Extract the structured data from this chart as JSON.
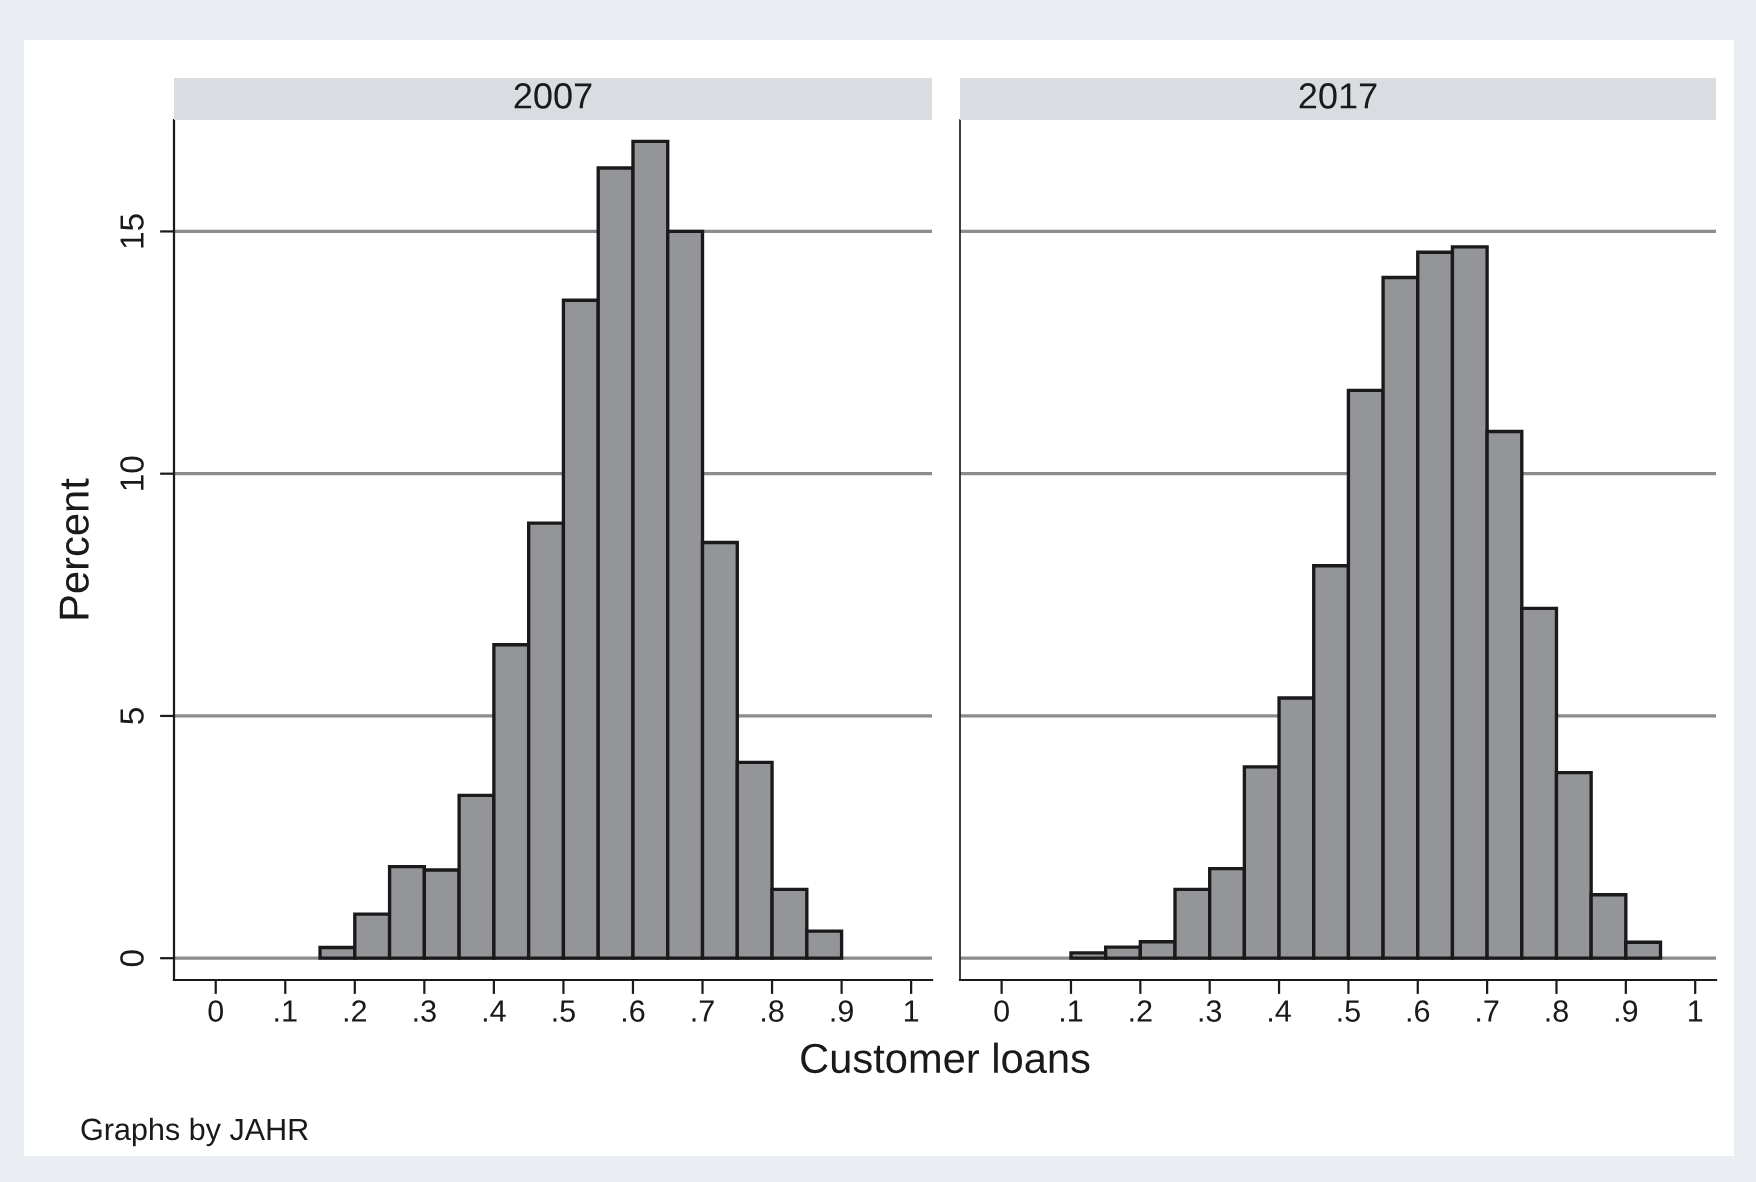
{
  "chart_data": [
    {
      "type": "histogram",
      "title": "2007",
      "xlabel": "Customer loans",
      "ylabel": "Percent",
      "annotations": [
        "Graphs by JAHR"
      ],
      "bins": [
        0.15,
        0.2,
        0.25,
        0.3,
        0.35,
        0.4,
        0.45,
        0.5,
        0.55,
        0.6,
        0.65,
        0.7,
        0.75,
        0.8,
        0.85,
        0.9
      ],
      "values": [
        0.22,
        0.91,
        1.89,
        1.82,
        3.36,
        6.47,
        8.98,
        13.58,
        16.31,
        16.86,
        15.0,
        8.58,
        4.04,
        1.42,
        0.56
      ],
      "color": "#939598",
      "xlim": [
        -0.06,
        1.03
      ],
      "ylim": [
        -0.45,
        17.3
      ],
      "xticks": [
        0,
        {
          "value": 0.1,
          "label": ".1"
        },
        {
          "value": 0.2,
          "label": ".2"
        },
        {
          "value": 0.3,
          "label": ".3"
        },
        {
          "value": 0.4,
          "label": ".4"
        },
        {
          "value": 0.5,
          "label": ".5"
        },
        {
          "value": 0.6,
          "label": ".6"
        },
        {
          "value": 0.7,
          "label": ".7"
        },
        {
          "value": 0.8,
          "label": ".8"
        },
        {
          "value": 0.9,
          "label": ".9"
        },
        1
      ],
      "yticks": [
        0,
        5,
        10,
        15
      ],
      "grid": "y"
    },
    {
      "type": "histogram",
      "title": "2017",
      "bins": [
        0.1,
        0.15,
        0.2,
        0.25,
        0.3,
        0.35,
        0.4,
        0.45,
        0.5,
        0.55,
        0.6,
        0.65,
        0.7,
        0.75,
        0.8,
        0.85,
        0.9,
        0.95
      ],
      "values": [
        0.11,
        0.23,
        0.34,
        1.42,
        1.85,
        3.95,
        5.37,
        8.1,
        11.72,
        14.05,
        14.57,
        14.68,
        10.87,
        7.22,
        3.83,
        1.31,
        0.33
      ],
      "color": "#939598",
      "xlim": [
        -0.06,
        1.03
      ],
      "ylim": [
        -0.45,
        17.3
      ],
      "xticks": [
        0,
        {
          "value": 0.1,
          "label": ".1"
        },
        {
          "value": 0.2,
          "label": ".2"
        },
        {
          "value": 0.3,
          "label": ".3"
        },
        {
          "value": 0.4,
          "label": ".4"
        },
        {
          "value": 0.5,
          "label": ".5"
        },
        {
          "value": 0.6,
          "label": ".6"
        },
        {
          "value": 0.7,
          "label": ".7"
        },
        {
          "value": 0.8,
          "label": ".8"
        },
        {
          "value": 0.9,
          "label": ".9"
        },
        1
      ],
      "yticks": [
        0,
        5,
        10,
        15
      ],
      "grid": "y",
      "tick_labels": "x"
    }
  ]
}
